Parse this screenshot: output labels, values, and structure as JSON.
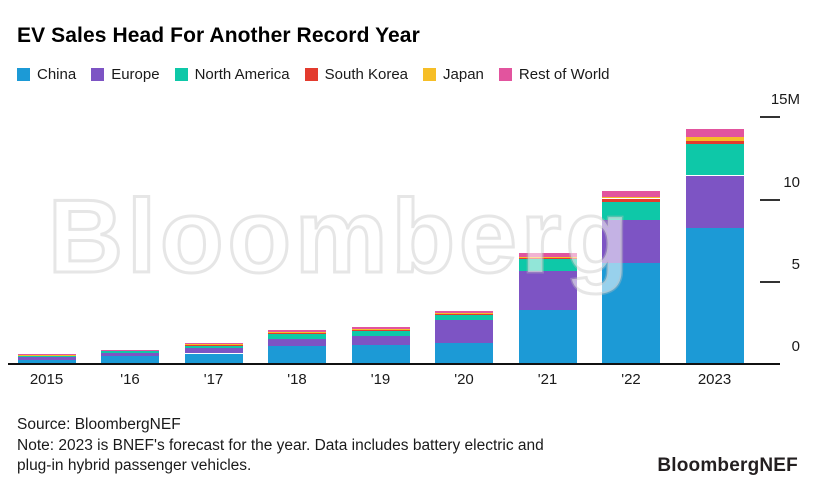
{
  "title": "EV Sales Head For Another Record Year",
  "watermark": "Bloomberg",
  "legend": [
    {
      "label": "China",
      "color": "#1C9AD6"
    },
    {
      "label": "Europe",
      "color": "#7D54C4"
    },
    {
      "label": "North America",
      "color": "#0EC8A8"
    },
    {
      "label": "South Korea",
      "color": "#E33B2E"
    },
    {
      "label": "Japan",
      "color": "#F6BE27"
    },
    {
      "label": "Rest of World",
      "color": "#E2549E"
    }
  ],
  "chart_data": {
    "type": "bar",
    "stacked": true,
    "title": "EV Sales Head For Another Record Year",
    "unit": "million passenger EVs",
    "categories": [
      "2015",
      "'16",
      "'17",
      "'18",
      "'19",
      "'20",
      "'21",
      "'22",
      "2023"
    ],
    "series": [
      {
        "name": "China",
        "color": "#1C9AD6",
        "values": [
          0.2,
          0.4,
          0.58,
          1.05,
          1.1,
          1.2,
          3.2,
          6.1,
          8.2
        ]
      },
      {
        "name": "Europe",
        "color": "#7D54C4",
        "values": [
          0.15,
          0.2,
          0.31,
          0.41,
          0.56,
          1.4,
          2.4,
          2.6,
          3.2
        ]
      },
      {
        "name": "North America",
        "color": "#0EC8A8",
        "values": [
          0.12,
          0.16,
          0.2,
          0.36,
          0.34,
          0.35,
          0.72,
          1.1,
          1.9
        ]
      },
      {
        "name": "South Korea",
        "color": "#E33B2E",
        "values": [
          0.01,
          0.01,
          0.02,
          0.03,
          0.03,
          0.05,
          0.1,
          0.2,
          0.2
        ]
      },
      {
        "name": "Japan",
        "color": "#F6BE27",
        "values": [
          0.02,
          0.02,
          0.06,
          0.05,
          0.04,
          0.03,
          0.05,
          0.1,
          0.22
        ]
      },
      {
        "name": "Rest of World",
        "color": "#E2549E",
        "values": [
          0.02,
          0.03,
          0.05,
          0.1,
          0.15,
          0.12,
          0.2,
          0.35,
          0.5
        ]
      }
    ],
    "ylim": [
      0,
      15
    ],
    "y_ticks": [
      {
        "label": "15M",
        "value": 15
      },
      {
        "label": "10",
        "value": 10
      },
      {
        "label": "5",
        "value": 5
      },
      {
        "label": "0",
        "value": 0
      }
    ],
    "legend_position": "top",
    "grid": false,
    "y_axis_side": "right"
  },
  "footer": {
    "source": "Source: BloombergNEF",
    "note_line1": "Note: 2023 is BNEF's forecast for the year. Data includes battery electric and",
    "note_line2": "plug-in hybrid passenger vehicles.",
    "brand": "BloombergNEF"
  }
}
